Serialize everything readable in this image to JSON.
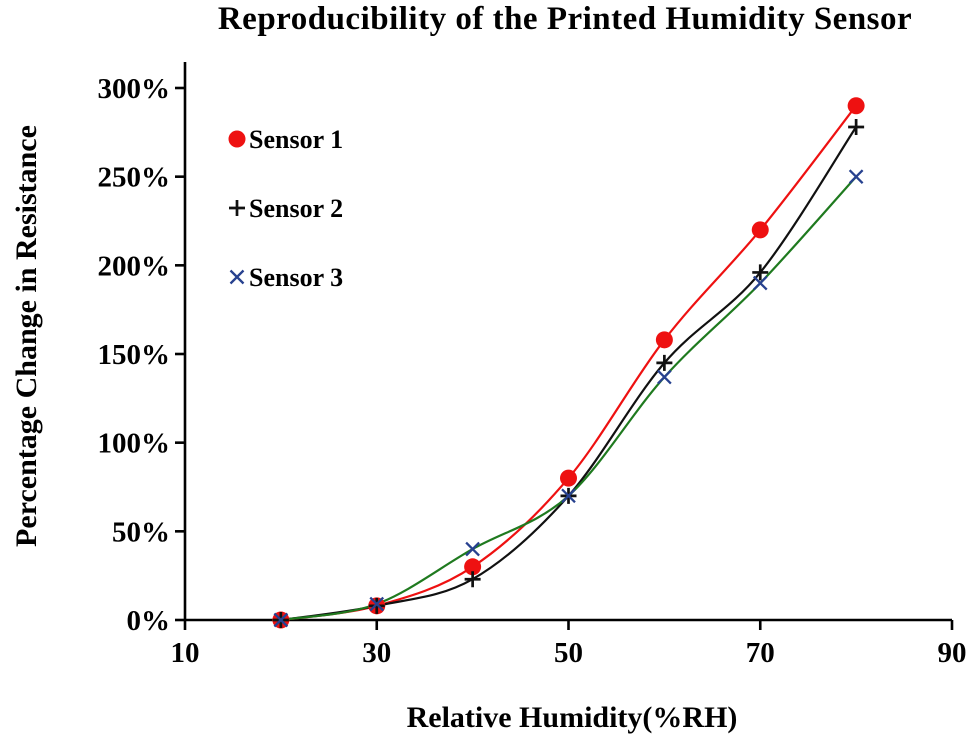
{
  "title": "Reproducibility of the Printed Humidity Sensor",
  "chart_data": {
    "type": "line",
    "title": "Reproducibility of the Printed Humidity Sensor",
    "xlabel": "Relative Humidity(%RH)",
    "ylabel": "Percentage Change in Resistance",
    "xlim": [
      10,
      90
    ],
    "ylim": [
      0,
      300
    ],
    "x_ticks": [
      10,
      30,
      50,
      70,
      90
    ],
    "y_ticks": [
      0,
      50,
      100,
      150,
      200,
      250,
      300
    ],
    "y_tick_suffix": "%",
    "grid": false,
    "legend_position": "upper-left-inside",
    "x": [
      20,
      30,
      40,
      50,
      60,
      70,
      80
    ],
    "series": [
      {
        "name": "Sensor 1",
        "marker": "circle",
        "marker_color": "#ee1111",
        "line_color": "#ee1111",
        "values": [
          0,
          8,
          30,
          80,
          158,
          220,
          290
        ]
      },
      {
        "name": "Sensor 2",
        "marker": "plus",
        "marker_color": "#111111",
        "line_color": "#111111",
        "values": [
          0,
          8,
          23,
          70,
          145,
          196,
          278
        ]
      },
      {
        "name": "Sensor 3",
        "marker": "x",
        "marker_color": "#27418f",
        "line_color": "#1f7a1f",
        "values": [
          0,
          9,
          40,
          70,
          137,
          190,
          250
        ]
      }
    ],
    "colors": {
      "axis": "#000000"
    }
  }
}
